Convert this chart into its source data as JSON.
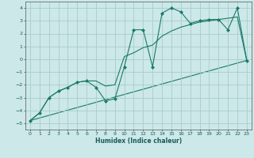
{
  "background_color": "#cce8e8",
  "grid_color": "#aacccc",
  "line_color": "#1a7a6a",
  "x_label": "Humidex (Indice chaleur)",
  "ylim": [
    -5.5,
    4.5
  ],
  "xlim": [
    -0.5,
    23.5
  ],
  "yticks": [
    -5,
    -4,
    -3,
    -2,
    -1,
    0,
    1,
    2,
    3,
    4
  ],
  "xticks": [
    0,
    1,
    2,
    3,
    4,
    5,
    6,
    7,
    8,
    9,
    10,
    11,
    12,
    13,
    14,
    15,
    16,
    17,
    18,
    19,
    20,
    21,
    22,
    23
  ],
  "line1_x": [
    0,
    1,
    2,
    3,
    4,
    5,
    6,
    7,
    8,
    9,
    10,
    11,
    12,
    13,
    14,
    15,
    16,
    17,
    18,
    19,
    20,
    21,
    22,
    23
  ],
  "line1_y": [
    -4.8,
    -4.2,
    -3.0,
    -2.5,
    -2.2,
    -1.8,
    -1.7,
    -2.2,
    -3.25,
    -3.1,
    -0.6,
    2.3,
    2.3,
    -0.6,
    3.6,
    4.0,
    3.7,
    2.8,
    3.0,
    3.1,
    3.1,
    2.3,
    4.0,
    -0.1
  ],
  "line2_x": [
    0,
    1,
    2,
    3,
    4,
    5,
    6,
    7,
    8,
    9,
    10,
    11,
    12,
    13,
    14,
    15,
    16,
    17,
    18,
    19,
    20,
    21,
    22,
    23
  ],
  "line2_y": [
    -4.8,
    -4.2,
    -3.0,
    -2.5,
    -2.2,
    -1.8,
    -1.7,
    -1.7,
    -2.1,
    -2.0,
    0.2,
    0.5,
    0.9,
    1.1,
    1.8,
    2.2,
    2.5,
    2.7,
    2.9,
    3.0,
    3.1,
    3.2,
    3.3,
    -0.1
  ],
  "line3_x": [
    0,
    23
  ],
  "line3_y": [
    -4.8,
    -0.1
  ]
}
